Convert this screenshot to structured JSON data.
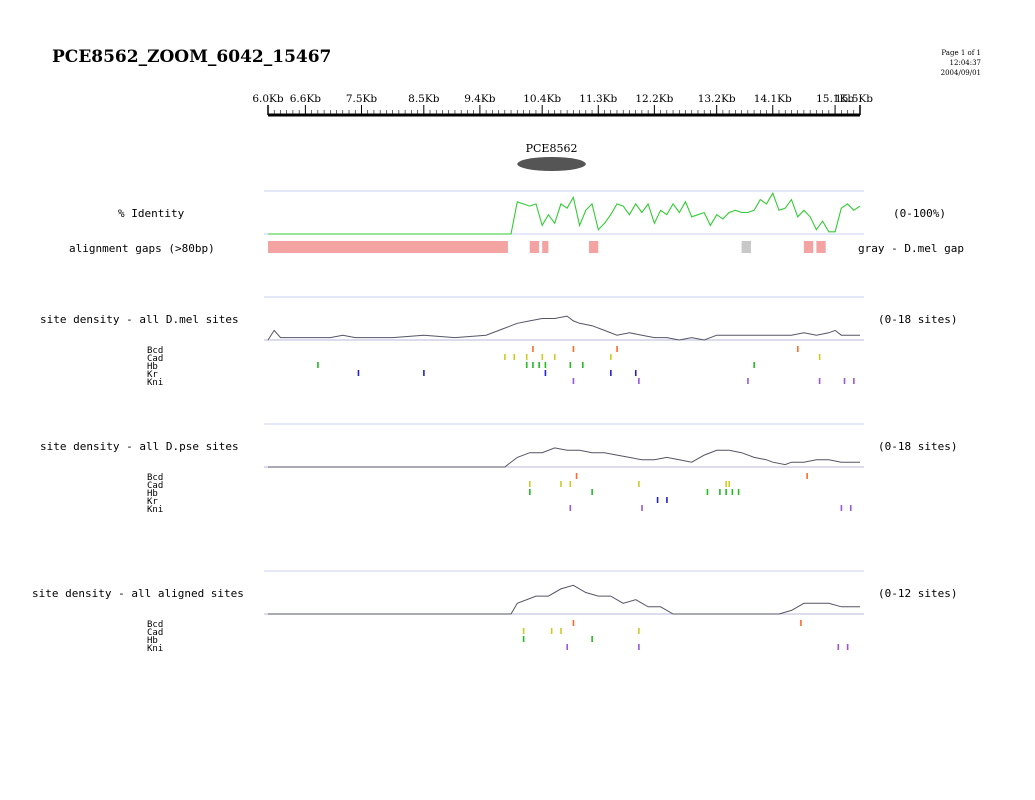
{
  "page": {
    "title": "PCE8562_ZOOM_6042_15467",
    "meta": {
      "page": "Page 1 of 1",
      "time": "12:04:37",
      "date": "2004/09/01"
    }
  },
  "chart_data": {
    "type": "line",
    "x_axis": {
      "unit": "Kb",
      "range": [
        6.0,
        15.5
      ],
      "ticks": [
        {
          "v": 6.0,
          "label": "6.0Kb"
        },
        {
          "v": 6.6,
          "label": "6.6Kb"
        },
        {
          "v": 7.5,
          "label": "7.5Kb"
        },
        {
          "v": 8.5,
          "label": "8.5Kb"
        },
        {
          "v": 9.4,
          "label": "9.4Kb"
        },
        {
          "v": 10.4,
          "label": "10.4Kb"
        },
        {
          "v": 11.3,
          "label": "11.3Kb"
        },
        {
          "v": 12.2,
          "label": "12.2Kb"
        },
        {
          "v": 13.2,
          "label": "13.2Kb"
        },
        {
          "v": 14.1,
          "label": "14.1Kb"
        },
        {
          "v": 15.1,
          "label": "15.1Kb"
        },
        {
          "v": 15.5,
          "label": "15.5Kb"
        }
      ]
    },
    "feature": {
      "name": "PCE8562",
      "start": 10.0,
      "end": 11.1,
      "color": "#555555"
    },
    "identity": {
      "label": "% Identity",
      "range": "(0-100%)",
      "color": "#33cc33",
      "ymax": 100,
      "x": [
        6.0,
        9.9,
        10.0,
        10.2,
        10.3,
        10.4,
        10.5,
        10.6,
        10.7,
        10.8,
        10.9,
        11.0,
        11.1,
        11.2,
        11.3,
        11.4,
        11.5,
        11.6,
        11.7,
        11.8,
        11.9,
        12.0,
        12.1,
        12.2,
        12.3,
        12.4,
        12.5,
        12.6,
        12.7,
        12.8,
        12.9,
        13.0,
        13.1,
        13.2,
        13.3,
        13.4,
        13.5,
        13.6,
        13.7,
        13.8,
        13.9,
        14.0,
        14.1,
        14.2,
        14.3,
        14.4,
        14.5,
        14.6,
        14.7,
        14.8,
        14.9,
        15.0,
        15.1,
        15.2,
        15.3,
        15.4,
        15.5
      ],
      "y": [
        0,
        0,
        75,
        65,
        70,
        20,
        45,
        25,
        70,
        60,
        85,
        20,
        55,
        70,
        10,
        25,
        45,
        70,
        65,
        45,
        70,
        50,
        70,
        25,
        55,
        45,
        70,
        50,
        75,
        40,
        45,
        50,
        20,
        45,
        35,
        50,
        55,
        50,
        50,
        55,
        80,
        70,
        95,
        55,
        60,
        80,
        40,
        55,
        40,
        10,
        30,
        5,
        5,
        60,
        70,
        55,
        65
      ]
    },
    "gaps": {
      "label": "alignment gaps (>80bp)",
      "note": "gray - D.mel gap",
      "colors": {
        "gap": "#f4a3a3",
        "dmel": "#c8c8c8"
      },
      "segments": [
        {
          "start": 6.0,
          "end": 9.85,
          "kind": "gap"
        },
        {
          "start": 10.2,
          "end": 10.35,
          "kind": "gap"
        },
        {
          "start": 10.4,
          "end": 10.5,
          "kind": "gap"
        },
        {
          "start": 11.15,
          "end": 11.3,
          "kind": "gap"
        },
        {
          "start": 13.6,
          "end": 13.75,
          "kind": "dmel"
        },
        {
          "start": 14.6,
          "end": 14.75,
          "kind": "gap"
        },
        {
          "start": 14.8,
          "end": 14.95,
          "kind": "gap"
        }
      ]
    },
    "tracks": [
      {
        "label": "site density - all D.mel sites",
        "range": "(0-18 sites)",
        "ymax": 18,
        "density_x": [
          6.0,
          6.1,
          6.2,
          6.4,
          7.0,
          7.2,
          7.4,
          8.0,
          8.5,
          9.0,
          9.5,
          9.8,
          10.0,
          10.2,
          10.4,
          10.6,
          10.8,
          10.9,
          11.0,
          11.2,
          11.4,
          11.6,
          11.8,
          12.0,
          12.2,
          12.4,
          12.6,
          12.8,
          13.0,
          13.2,
          13.4,
          13.6,
          13.8,
          14.0,
          14.2,
          14.4,
          14.6,
          14.8,
          15.0,
          15.1,
          15.2,
          15.5
        ],
        "density_y": [
          0,
          4,
          1,
          1,
          1,
          2,
          1,
          1,
          2,
          1,
          2,
          5,
          7,
          8,
          9,
          9,
          10,
          8,
          7,
          6,
          4,
          2,
          3,
          2,
          1,
          1,
          0,
          1,
          0,
          2,
          2,
          2,
          2,
          2,
          2,
          2,
          3,
          2,
          3,
          4,
          2,
          2
        ],
        "factors": [
          {
            "name": "Bcd",
            "color": "#ff6a2a",
            "x": [
              10.25,
              10.9,
              11.6,
              14.5
            ]
          },
          {
            "name": "Cad",
            "color": "#cccc22",
            "x": [
              9.8,
              9.95,
              10.15,
              10.4,
              10.6,
              11.5,
              14.85
            ]
          },
          {
            "name": "Hb",
            "color": "#22bb22",
            "x": [
              6.8,
              10.15,
              10.25,
              10.35,
              10.45,
              10.85,
              11.05,
              13.8
            ]
          },
          {
            "name": "Kr",
            "color": "#2222cc",
            "x": [
              7.45,
              8.5,
              10.45,
              11.5,
              11.9
            ]
          },
          {
            "name": "Kni",
            "color": "#9955dd",
            "x": [
              10.9,
              11.95,
              13.7,
              14.85,
              15.25,
              15.4
            ]
          }
        ]
      },
      {
        "label": "site density - all D.pse sites",
        "range": "(0-18 sites)",
        "ymax": 18,
        "density_x": [
          6.0,
          9.8,
          10.0,
          10.2,
          10.4,
          10.6,
          10.8,
          11.0,
          11.2,
          11.4,
          11.6,
          11.8,
          12.0,
          12.2,
          12.4,
          12.6,
          12.8,
          13.0,
          13.2,
          13.4,
          13.6,
          13.8,
          14.0,
          14.1,
          14.3,
          14.4,
          14.6,
          14.8,
          15.0,
          15.2,
          15.5
        ],
        "density_y": [
          0,
          0,
          4,
          6,
          6,
          8,
          7,
          7,
          6,
          6,
          5,
          4,
          3,
          3,
          4,
          3,
          2,
          5,
          7,
          7,
          6,
          4,
          3,
          2,
          1,
          2,
          2,
          3,
          3,
          2,
          2
        ],
        "factors": [
          {
            "name": "Bcd",
            "color": "#ff6a2a",
            "x": [
              10.95,
              14.65
            ]
          },
          {
            "name": "Cad",
            "color": "#cccc22",
            "x": [
              10.2,
              10.7,
              10.85,
              11.95,
              13.35,
              13.4
            ]
          },
          {
            "name": "Hb",
            "color": "#22bb22",
            "x": [
              10.2,
              11.2,
              13.05,
              13.25,
              13.35,
              13.45,
              13.55
            ]
          },
          {
            "name": "Kr",
            "color": "#2222cc",
            "x": [
              12.25,
              12.4
            ]
          },
          {
            "name": "Kni",
            "color": "#9955dd",
            "x": [
              10.85,
              12.0,
              15.2,
              15.35
            ]
          }
        ]
      },
      {
        "label": "site density - all aligned sites",
        "range": "(0-12 sites)",
        "ymax": 12,
        "density_x": [
          6.0,
          9.9,
          10.0,
          10.3,
          10.5,
          10.7,
          10.9,
          11.1,
          11.3,
          11.5,
          11.7,
          11.9,
          12.1,
          12.3,
          12.5,
          12.6,
          12.8,
          13.0,
          13.2,
          13.4,
          13.6,
          13.8,
          14.0,
          14.2,
          14.4,
          14.6,
          14.8,
          15.0,
          15.2,
          15.5
        ],
        "density_y": [
          0,
          0,
          3,
          5,
          5,
          7,
          8,
          6,
          5,
          5,
          3,
          4,
          2,
          2,
          0,
          0,
          0,
          0,
          0,
          0,
          0,
          0,
          0,
          0,
          1,
          3,
          3,
          3,
          2,
          2
        ],
        "factors": [
          {
            "name": "Bcd",
            "color": "#ff6a2a",
            "x": [
              10.9,
              14.55
            ]
          },
          {
            "name": "Cad",
            "color": "#cccc22",
            "x": [
              10.1,
              10.55,
              10.7,
              11.95
            ]
          },
          {
            "name": "Hb",
            "color": "#22bb22",
            "x": [
              10.1,
              11.2
            ]
          },
          {
            "name": "Kni",
            "color": "#9955dd",
            "x": [
              10.8,
              11.95,
              15.15,
              15.3
            ]
          }
        ]
      }
    ]
  }
}
